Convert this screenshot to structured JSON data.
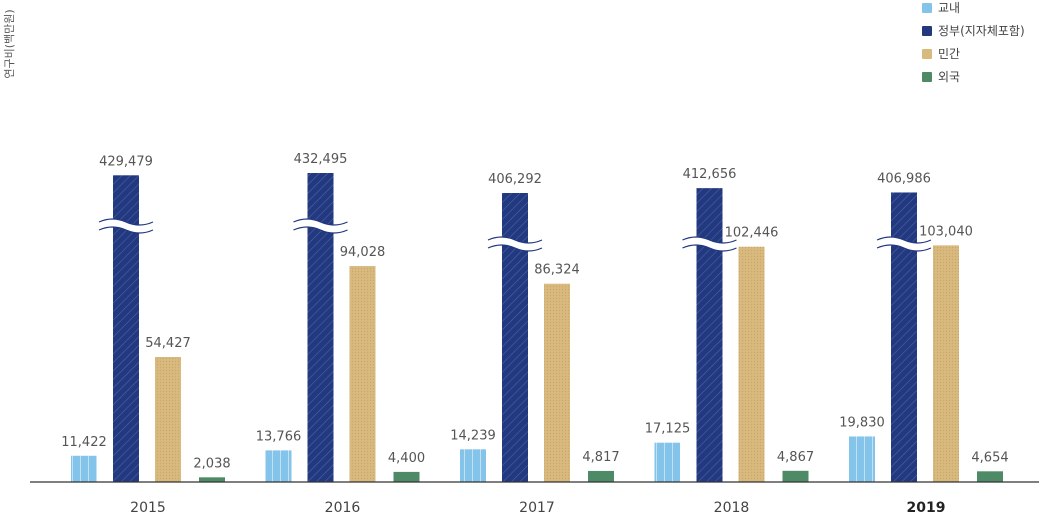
{
  "chart_data": {
    "type": "bar",
    "ylabel": "연구비(백만원)",
    "categories": [
      "2015",
      "2016",
      "2017",
      "2018",
      "2019"
    ],
    "series": [
      {
        "name": "교내",
        "values": [
          11422,
          13766,
          14239,
          17125,
          19830
        ],
        "color": "#85c4ea",
        "labels": [
          "11,422",
          "13,766",
          "14,239",
          "17,125",
          "19,830"
        ]
      },
      {
        "name": "정부(지자체포함)",
        "values": [
          429479,
          432495,
          406292,
          412656,
          406986
        ],
        "color": "#22387f",
        "labels": [
          "429,479",
          "432,495",
          "406,292",
          "412,656",
          "406,986"
        ]
      },
      {
        "name": "민간",
        "values": [
          54427,
          94028,
          86324,
          102446,
          103040
        ],
        "color": "#d8b97e",
        "labels": [
          "54,427",
          "94,028",
          "86,324",
          "102,446",
          "103,040"
        ]
      },
      {
        "name": "외국",
        "values": [
          2038,
          4400,
          4817,
          4867,
          4654
        ],
        "color": "#4f8a66",
        "labels": [
          "2,038",
          "4,400",
          "4,817",
          "4,867",
          "4,654"
        ]
      }
    ],
    "axis_break": true,
    "grid": false,
    "legend_position": "top-right",
    "highlight_category": "2019"
  }
}
